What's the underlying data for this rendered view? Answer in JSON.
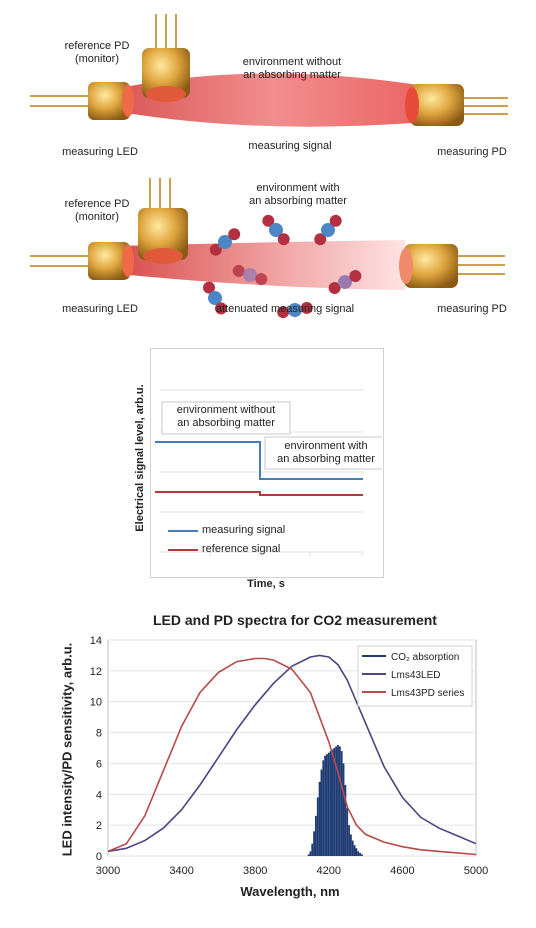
{
  "panel1": {
    "ref_pd": "reference PD",
    "ref_pd_sub": "(monitor)",
    "env_line1": "environment without",
    "env_line2": "an absorbing matter",
    "led": "measuring LED",
    "signal": "measuring signal",
    "pd": "measuring PD"
  },
  "panel2": {
    "ref_pd": "reference PD",
    "ref_pd_sub": "(monitor)",
    "env_line1": "environment with",
    "env_line2": "an absorbing matter",
    "led": "measuring LED",
    "signal": "attenuated measuring signal",
    "pd": "measuring PD"
  },
  "timing": {
    "ylabel": "Electrical signal level, arb.u.",
    "xlabel": "Time, s",
    "box1_line1": "environment without",
    "box1_line2": "an absorbing matter",
    "box2_line1": "environment with",
    "box2_line2": "an absorbing matter",
    "legend": [
      "measuring signal",
      "reference signal"
    ],
    "colors": {
      "measuring": "#4a7db5",
      "reference": "#b03a3a"
    }
  },
  "chart_data": {
    "type": "line",
    "title": "LED and PD spectra for CO2 measurement",
    "xlabel": "Wavelength, nm",
    "ylabel": "LED intensity/PD sensitivity, arb.u.",
    "xlim": [
      3000,
      5000
    ],
    "ylim": [
      0,
      14
    ],
    "xticks": [
      3000,
      3400,
      3800,
      4200,
      4600,
      5000
    ],
    "yticks": [
      0,
      2,
      4,
      6,
      8,
      10,
      12,
      14
    ],
    "legend_position": "top-right",
    "series": [
      {
        "name": "CO₂ absorption",
        "kind": "bar",
        "color": "#1f3c72",
        "x": [
          4090,
          4100,
          4110,
          4120,
          4130,
          4140,
          4150,
          4160,
          4170,
          4180,
          4190,
          4200,
          4210,
          4220,
          4230,
          4240,
          4250,
          4260,
          4270,
          4280,
          4290,
          4300,
          4310,
          4320,
          4330,
          4340,
          4350,
          4360,
          4370,
          4380
        ],
        "y": [
          0.1,
          0.3,
          0.8,
          1.6,
          2.6,
          3.8,
          4.8,
          5.6,
          6.2,
          6.5,
          6.6,
          6.7,
          6.8,
          6.9,
          7.0,
          7.1,
          7.2,
          7.1,
          6.8,
          6.0,
          4.6,
          3.1,
          2.0,
          1.4,
          1.0,
          0.7,
          0.5,
          0.3,
          0.2,
          0.1
        ]
      },
      {
        "name": "Lms43LED",
        "kind": "line",
        "color": "#4c4580",
        "x": [
          3000,
          3100,
          3200,
          3300,
          3400,
          3500,
          3600,
          3700,
          3800,
          3900,
          4000,
          4100,
          4150,
          4200,
          4250,
          4300,
          4400,
          4500,
          4600,
          4700,
          4800,
          4900,
          5000
        ],
        "y": [
          0.3,
          0.5,
          1.0,
          1.8,
          3.0,
          4.6,
          6.4,
          8.2,
          9.8,
          11.2,
          12.3,
          12.9,
          13.0,
          12.9,
          12.4,
          11.4,
          8.6,
          5.8,
          3.8,
          2.5,
          1.8,
          1.3,
          0.8
        ]
      },
      {
        "name": "Lms43PD series",
        "kind": "line",
        "color": "#b84a4a",
        "x": [
          3000,
          3100,
          3200,
          3300,
          3400,
          3500,
          3600,
          3700,
          3800,
          3850,
          3900,
          4000,
          4100,
          4200,
          4250,
          4300,
          4350,
          4400,
          4500,
          4600,
          4700,
          4800,
          4900,
          5000
        ],
        "y": [
          0.3,
          0.8,
          2.6,
          5.5,
          8.4,
          10.6,
          11.9,
          12.6,
          12.8,
          12.8,
          12.7,
          12.1,
          10.6,
          7.4,
          5.4,
          3.2,
          2.0,
          1.4,
          0.9,
          0.6,
          0.4,
          0.3,
          0.2,
          0.1
        ]
      }
    ]
  }
}
